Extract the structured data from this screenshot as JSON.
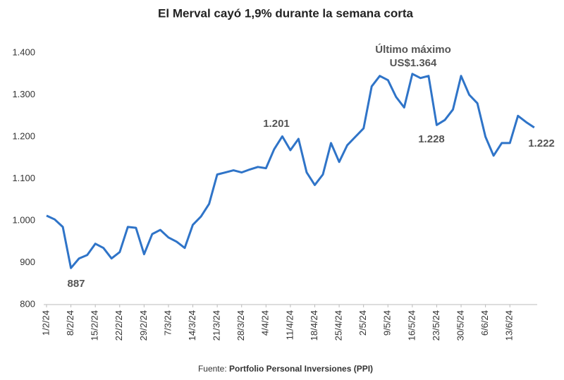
{
  "chart_data": {
    "type": "line",
    "title": "El Merval cayó 1,9% durante la semana corta",
    "categories": [
      "1/2/24",
      null,
      null,
      "8/2/24",
      null,
      null,
      "15/2/24",
      null,
      null,
      "22/2/24",
      null,
      null,
      "29/2/24",
      null,
      null,
      "7/3/24",
      null,
      null,
      "14/3/24",
      null,
      null,
      "21/3/24",
      null,
      null,
      "28/3/24",
      null,
      null,
      "4/4/24",
      null,
      null,
      "11/4/24",
      null,
      null,
      "18/4/24",
      null,
      null,
      "25/4/24",
      null,
      null,
      "2/5/24",
      null,
      null,
      "9/5/24",
      null,
      null,
      "16/5/24",
      null,
      null,
      "23/5/24",
      null,
      null,
      "30/5/24",
      null,
      null,
      "6/6/24",
      null,
      null,
      "13/6/24",
      null,
      null,
      null
    ],
    "series": [
      {
        "name": "Merval",
        "color": "#2f74c8",
        "values": [
          1012,
          1003,
          985,
          887,
          910,
          918,
          945,
          935,
          910,
          925,
          985,
          983,
          920,
          968,
          978,
          960,
          950,
          935,
          990,
          1010,
          1040,
          1110,
          1115,
          1120,
          1115,
          1122,
          1128,
          1125,
          1170,
          1201,
          1168,
          1195,
          1115,
          1085,
          1110,
          1185,
          1140,
          1180,
          1200,
          1220,
          1320,
          1345,
          1335,
          1295,
          1270,
          1350,
          1340,
          1345,
          1228,
          1240,
          1265,
          1345,
          1300,
          1280,
          1200,
          1155,
          1185,
          1185,
          1250,
          1235,
          1222
        ]
      }
    ],
    "ylim": [
      800,
      1400
    ],
    "yticks": [
      800,
      900,
      {
        "value": 1000,
        "label": "1.000"
      },
      {
        "value": 1100,
        "label": "1.100"
      },
      {
        "value": 1200,
        "label": "1.200"
      },
      {
        "value": 1300,
        "label": "1.300"
      },
      {
        "value": 1400,
        "label": "1.400"
      }
    ],
    "annotations": [
      "887",
      "1.201",
      "Último máximo",
      "US$1.364",
      "1.228",
      "1.222"
    ],
    "source_label": "Fuente:",
    "source": "Portfolio Personal Inversiones (PPI)"
  }
}
